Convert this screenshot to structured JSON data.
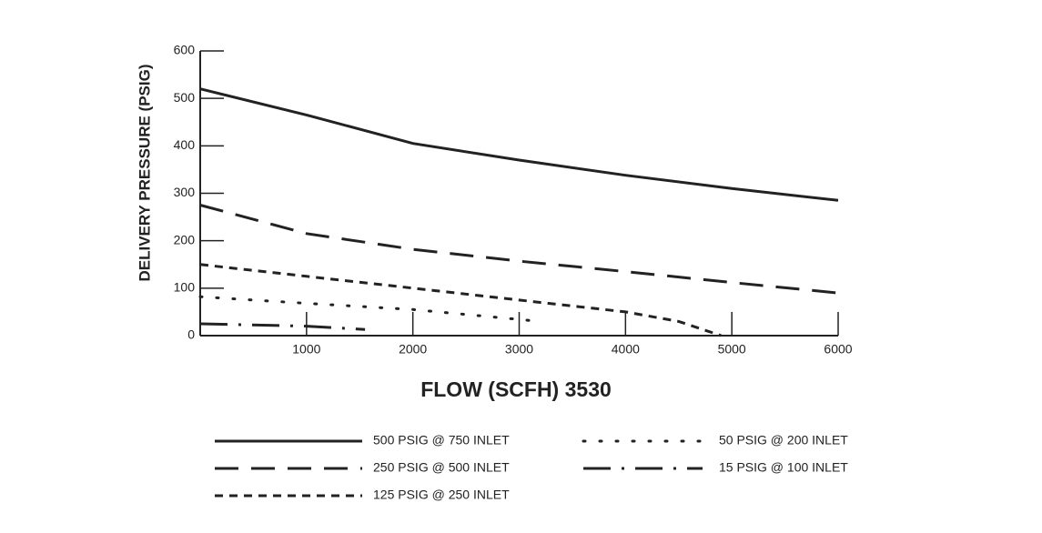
{
  "chart_data": {
    "type": "line",
    "xlabel": "FLOW (SCFH) 3530",
    "ylabel": "DELIVERY PRESSURE (PSIG)",
    "xlim": [
      0,
      6000
    ],
    "xticks": [
      1000,
      2000,
      3000,
      4000,
      5000,
      6000
    ],
    "ylim": [
      0,
      600
    ],
    "yticks": [
      0,
      100,
      200,
      300,
      400,
      500,
      600
    ],
    "series": [
      {
        "name": "500 PSIG @ 750 INLET",
        "color": "#222222",
        "style": "solid",
        "x": [
          0,
          1000,
          2000,
          3000,
          4000,
          5000,
          6000
        ],
        "values": [
          520,
          465,
          405,
          370,
          338,
          310,
          285
        ]
      },
      {
        "name": "250 PSIG @ 500 INLET",
        "color": "#222222",
        "style": "long-dash",
        "x": [
          0,
          1000,
          2000,
          3000,
          4000,
          5000,
          6000
        ],
        "values": [
          275,
          215,
          182,
          157,
          135,
          112,
          90
        ]
      },
      {
        "name": "125 PSIG @ 250 INLET",
        "color": "#222222",
        "style": "dashed",
        "x": [
          0,
          1000,
          2000,
          3000,
          4000,
          4500,
          4900
        ],
        "values": [
          150,
          125,
          100,
          75,
          50,
          30,
          0
        ]
      },
      {
        "name": "50 PSIG @ 200 INLET",
        "color": "#222222",
        "style": "dotted",
        "x": [
          0,
          1000,
          2000,
          3200
        ],
        "values": [
          82,
          68,
          55,
          30
        ]
      },
      {
        "name": "15 PSIG @ 100 INLET",
        "color": "#222222",
        "style": "dash-dot",
        "x": [
          0,
          1000,
          1550
        ],
        "values": [
          25,
          20,
          13
        ]
      }
    ]
  }
}
